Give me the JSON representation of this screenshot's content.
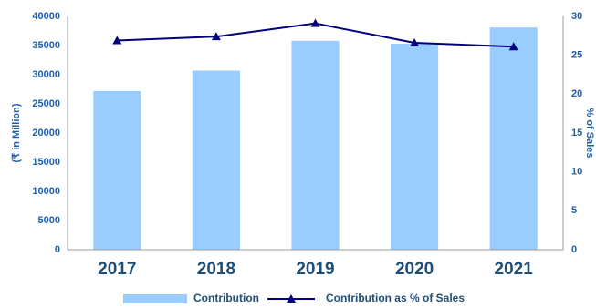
{
  "chart_data": {
    "type": "bar",
    "categories": [
      "2017",
      "2018",
      "2019",
      "2020",
      "2021"
    ],
    "series": [
      {
        "name": "Contribution",
        "type": "bar",
        "color": "#99ccff",
        "values": [
          27200,
          30700,
          35800,
          35300,
          38100
        ]
      },
      {
        "name": "Contribution as % of Sales",
        "type": "line",
        "axis": "y2",
        "color": "#000080",
        "values": [
          26.9,
          27.4,
          29.1,
          26.6,
          26.1
        ]
      }
    ],
    "ylabel": "(₹ in Million)",
    "y2label": "% of Sales",
    "ylim": [
      0,
      40000
    ],
    "yticks": [
      0,
      5000,
      10000,
      15000,
      20000,
      25000,
      30000,
      35000,
      40000
    ],
    "y2lim": [
      0,
      30
    ],
    "y2ticks": [
      0,
      5,
      10,
      15,
      20,
      25,
      30
    ],
    "grid": false,
    "legend": "bottom"
  }
}
